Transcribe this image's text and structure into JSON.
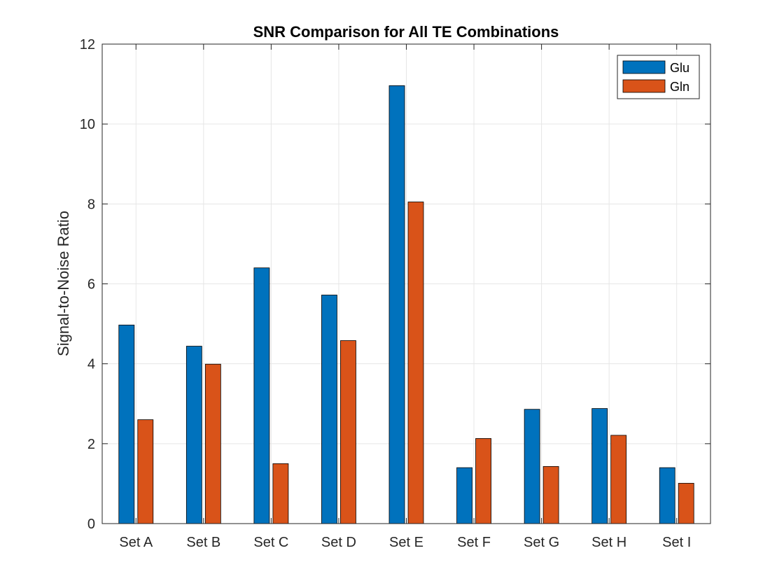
{
  "chart_data": {
    "type": "bar",
    "title": "SNR Comparison for All TE Combinations",
    "xlabel": "",
    "ylabel": "Signal-to-Noise Ratio",
    "categories": [
      "Set A",
      "Set B",
      "Set C",
      "Set D",
      "Set E",
      "Set F",
      "Set G",
      "Set H",
      "Set I"
    ],
    "series": [
      {
        "name": "Glu",
        "color": "#0072BD",
        "values": [
          4.97,
          4.44,
          6.4,
          5.72,
          10.96,
          1.4,
          2.86,
          2.88,
          1.4
        ]
      },
      {
        "name": "Gln",
        "color": "#D95319",
        "values": [
          2.6,
          3.99,
          1.5,
          4.58,
          8.05,
          2.13,
          1.43,
          2.21,
          1.01
        ]
      }
    ],
    "ylim": [
      0,
      12
    ],
    "yticks": [
      0,
      2,
      4,
      6,
      8,
      10,
      12
    ],
    "grid": true,
    "legend_position": "top-right"
  }
}
